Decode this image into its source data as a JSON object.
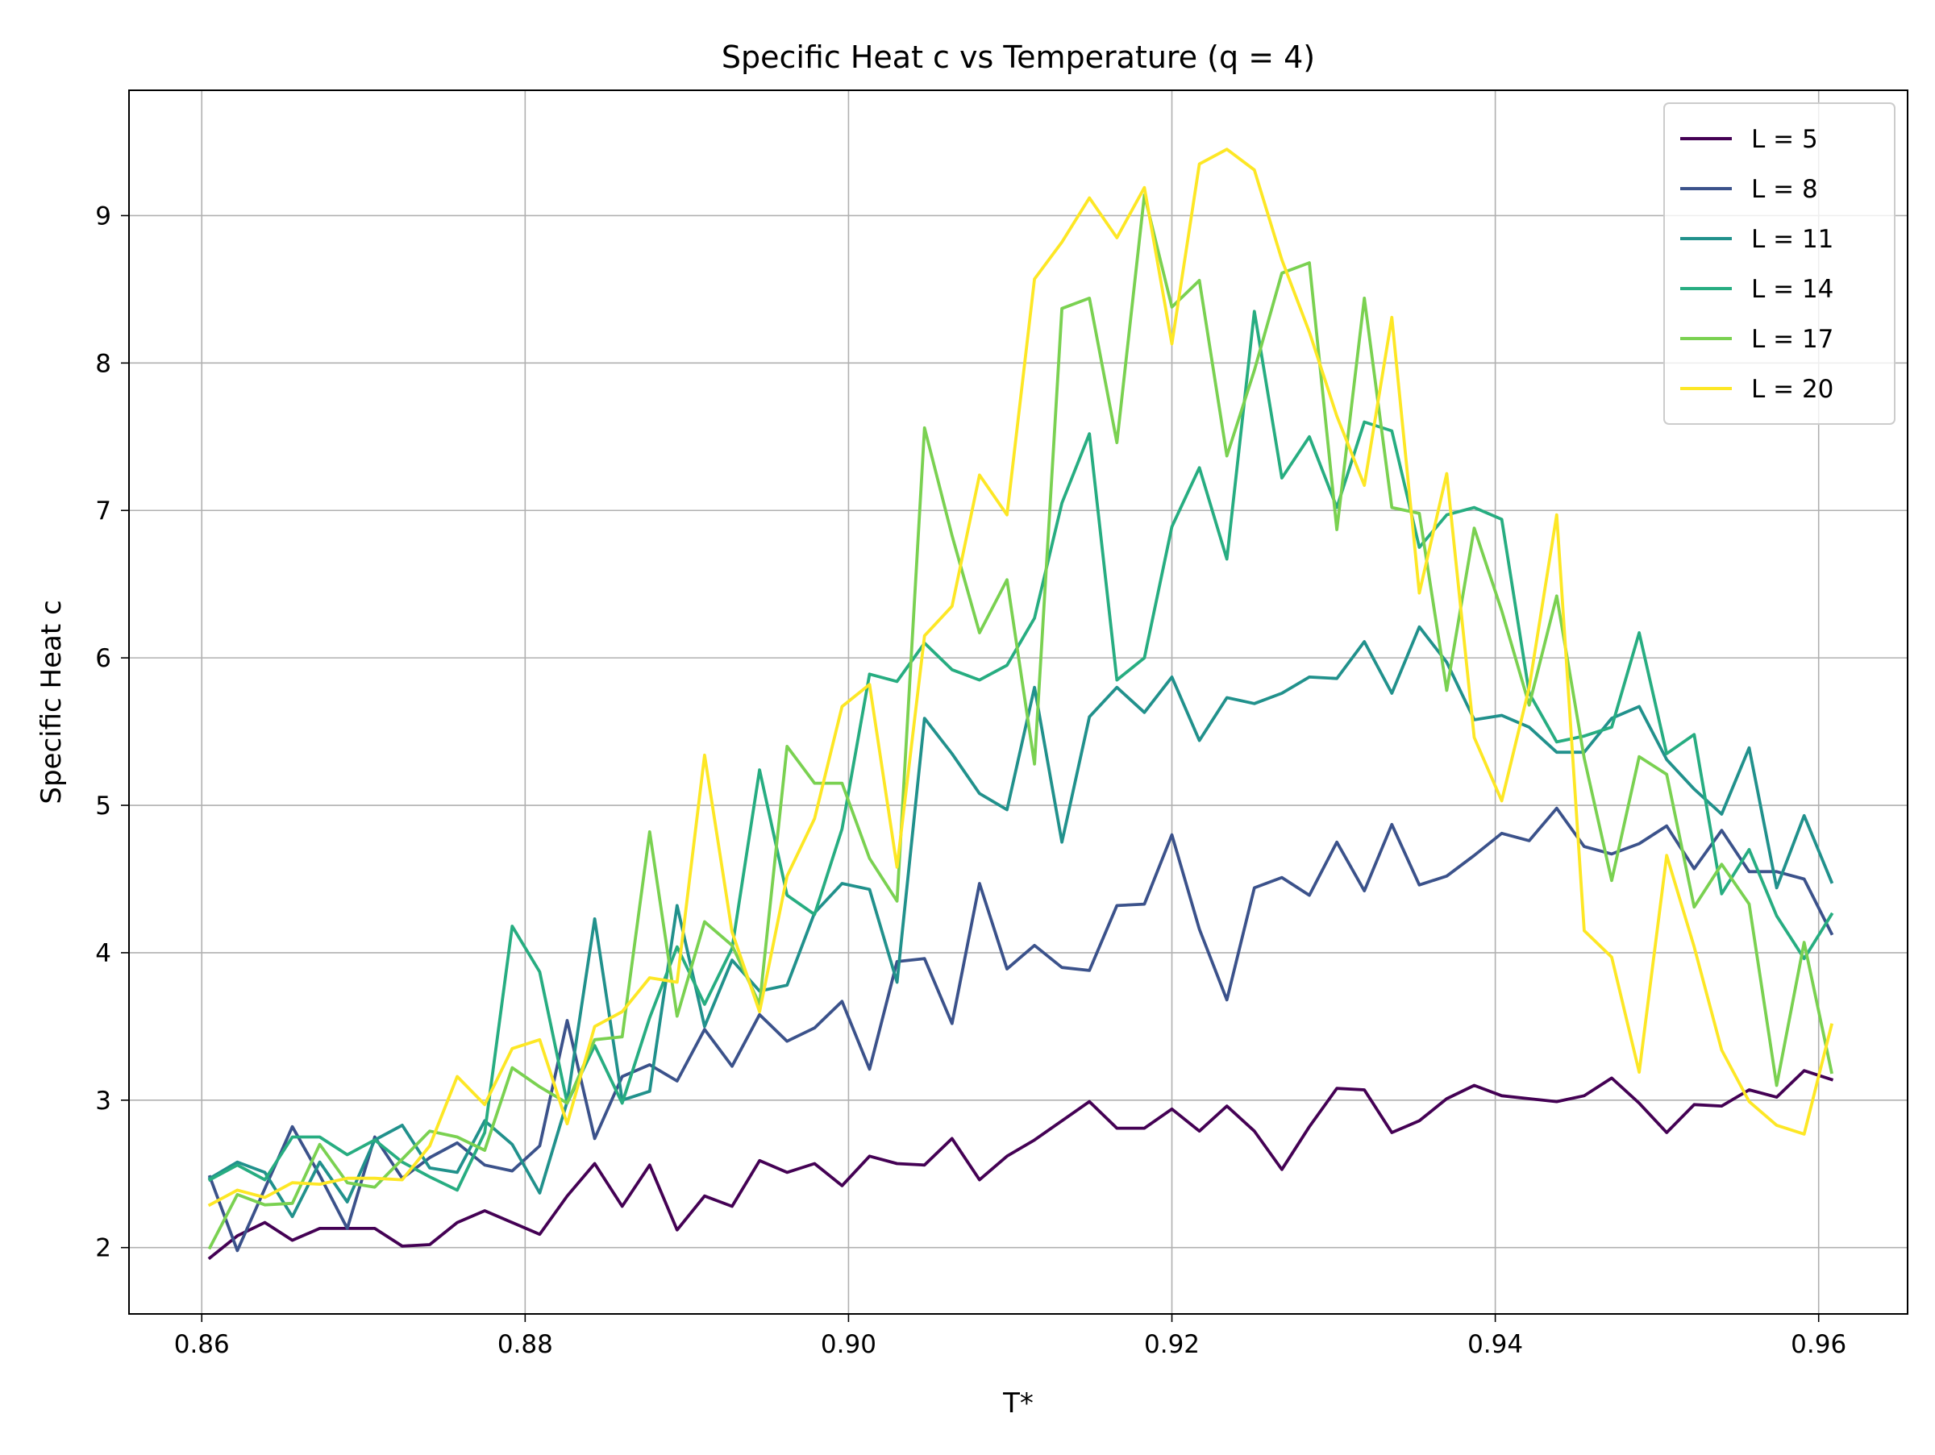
{
  "chart_data": {
    "type": "line",
    "title": "Specific Heat c vs Temperature (q = 4)",
    "xlabel": "T*",
    "ylabel": "Specific Heat c",
    "xlim": [
      0.8555,
      0.9655
    ],
    "ylim": [
      1.55,
      9.85
    ],
    "xticks": [
      0.86,
      0.88,
      0.9,
      0.92,
      0.94,
      0.96
    ],
    "xtick_labels": [
      "0.86",
      "0.88",
      "0.90",
      "0.92",
      "0.94",
      "0.96"
    ],
    "yticks": [
      2,
      3,
      4,
      5,
      6,
      7,
      8,
      9
    ],
    "ytick_labels": [
      "2",
      "3",
      "4",
      "5",
      "6",
      "7",
      "8",
      "9"
    ],
    "grid": true,
    "legend_position": "top-right",
    "x_start": 0.8605,
    "x_step": 0.0017,
    "series": [
      {
        "name": "L = 5",
        "color": "#440154",
        "values": [
          1.93,
          2.08,
          2.17,
          2.05,
          2.13,
          2.13,
          2.13,
          2.01,
          2.02,
          2.17,
          2.25,
          2.17,
          2.09,
          2.35,
          2.57,
          2.28,
          2.56,
          2.12,
          2.35,
          2.28,
          2.59,
          2.51,
          2.57,
          2.42,
          2.62,
          2.57,
          2.56,
          2.74,
          2.46,
          2.62,
          2.73,
          2.86,
          2.99,
          2.81,
          2.81,
          2.94,
          2.79,
          2.96,
          2.79,
          2.53,
          2.82,
          3.08,
          3.07,
          2.78,
          2.86,
          3.01,
          3.1,
          3.03,
          3.01,
          2.99,
          3.03,
          3.15,
          2.98,
          2.78,
          2.97,
          2.96,
          3.07,
          3.02,
          3.2,
          3.14
        ]
      },
      {
        "name": "L = 8",
        "color": "#3b528b",
        "values": [
          2.48,
          1.98,
          2.4,
          2.82,
          2.49,
          2.13,
          2.75,
          2.47,
          2.61,
          2.71,
          2.56,
          2.52,
          2.69,
          3.54,
          2.74,
          3.16,
          3.24,
          3.13,
          3.48,
          3.23,
          3.58,
          3.4,
          3.49,
          3.67,
          3.21,
          3.94,
          3.96,
          3.52,
          4.47,
          3.89,
          4.05,
          3.9,
          3.88,
          4.32,
          4.33,
          4.8,
          4.16,
          3.68,
          4.44,
          4.51,
          4.39,
          4.75,
          4.42,
          4.87,
          4.46,
          4.52,
          4.66,
          4.81,
          4.76,
          4.98,
          4.72,
          4.67,
          4.74,
          4.86,
          4.57,
          4.83,
          4.55,
          4.55,
          4.5,
          4.13
        ]
      },
      {
        "name": "L = 11",
        "color": "#21918c",
        "values": [
          2.47,
          2.58,
          2.51,
          2.21,
          2.58,
          2.31,
          2.73,
          2.83,
          2.54,
          2.51,
          2.86,
          2.7,
          2.37,
          2.99,
          4.23,
          3.0,
          3.06,
          4.32,
          3.5,
          3.95,
          3.74,
          3.78,
          4.27,
          4.47,
          4.43,
          3.8,
          5.59,
          5.35,
          5.08,
          4.97,
          5.8,
          4.75,
          5.6,
          5.8,
          5.63,
          5.87,
          5.44,
          5.73,
          5.69,
          5.76,
          5.87,
          5.86,
          6.11,
          5.76,
          6.21,
          5.97,
          5.58,
          5.61,
          5.53,
          5.36,
          5.36,
          5.59,
          5.67,
          5.31,
          5.11,
          4.94,
          5.39,
          4.44,
          4.93,
          4.48
        ]
      },
      {
        "name": "L = 14",
        "color": "#27ad81",
        "values": [
          2.46,
          2.56,
          2.46,
          2.75,
          2.75,
          2.63,
          2.73,
          2.58,
          2.48,
          2.39,
          2.78,
          4.18,
          3.87,
          2.98,
          3.37,
          2.98,
          3.56,
          4.04,
          3.65,
          4.03,
          5.24,
          4.39,
          4.26,
          4.84,
          5.89,
          5.84,
          6.1,
          5.92,
          5.85,
          5.95,
          6.27,
          7.05,
          7.52,
          5.85,
          6.0,
          6.89,
          7.29,
          6.67,
          8.35,
          7.22,
          7.5,
          7.02,
          7.6,
          7.54,
          6.75,
          6.97,
          7.02,
          6.94,
          5.76,
          5.43,
          5.47,
          5.53,
          6.17,
          5.35,
          5.48,
          4.4,
          4.7,
          4.25,
          3.96,
          4.26
        ]
      },
      {
        "name": "L = 17",
        "color": "#7ad151",
        "values": [
          2.0,
          2.36,
          2.29,
          2.3,
          2.7,
          2.44,
          2.41,
          2.6,
          2.79,
          2.75,
          2.66,
          3.22,
          3.09,
          2.98,
          3.41,
          3.43,
          4.82,
          3.57,
          4.21,
          4.05,
          3.65,
          5.4,
          5.15,
          5.15,
          4.64,
          4.35,
          7.56,
          6.83,
          6.17,
          6.53,
          5.28,
          8.37,
          8.44,
          7.46,
          9.14,
          8.38,
          8.56,
          7.37,
          7.95,
          8.61,
          8.68,
          6.87,
          8.44,
          7.02,
          6.98,
          5.78,
          6.88,
          6.32,
          5.68,
          6.42,
          5.32,
          4.49,
          5.33,
          5.21,
          4.31,
          4.6,
          4.33,
          3.1,
          4.07,
          3.19
        ]
      },
      {
        "name": "L = 20",
        "color": "#fde725",
        "values": [
          2.29,
          2.39,
          2.34,
          2.44,
          2.43,
          2.47,
          2.47,
          2.46,
          2.69,
          3.16,
          2.97,
          3.35,
          3.41,
          2.84,
          3.5,
          3.6,
          3.83,
          3.8,
          5.34,
          4.14,
          3.6,
          4.52,
          4.91,
          5.67,
          5.82,
          4.58,
          6.15,
          6.35,
          7.24,
          6.97,
          8.57,
          8.82,
          9.12,
          8.85,
          9.19,
          8.13,
          9.35,
          9.45,
          9.31,
          8.7,
          8.21,
          7.64,
          7.17,
          8.31,
          6.44,
          7.25,
          5.46,
          5.03,
          5.8,
          6.97,
          4.15,
          3.97,
          3.19,
          4.66,
          4.04,
          3.34,
          2.99,
          2.83,
          2.77,
          3.51
        ]
      }
    ]
  }
}
